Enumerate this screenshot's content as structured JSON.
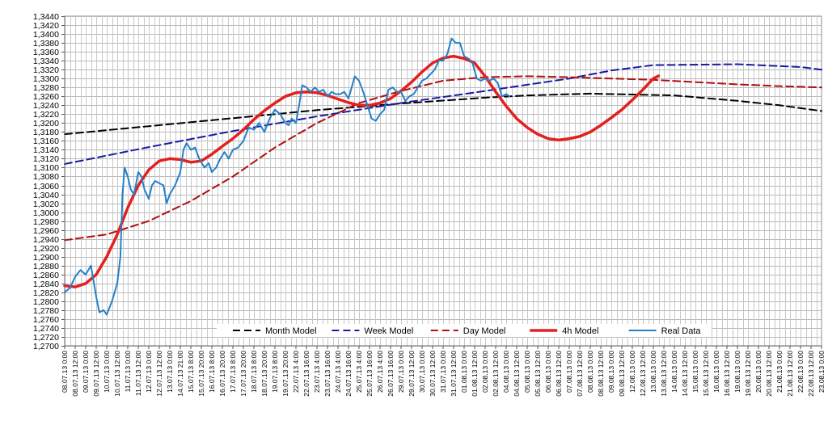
{
  "chart_data": {
    "type": "line",
    "title": "",
    "xlabel": "",
    "ylabel": "",
    "ylim": [
      1.27,
      1.344
    ],
    "y_step": 0.002,
    "grid": true,
    "legend_position": "bottom-center",
    "x_tick_labels": [
      "08.07.13 0:00",
      "08.07.13 12:00",
      "09.07.13 0:00",
      "09.07.13 12:00",
      "10.07.13 0:00",
      "10.07.13 12:00",
      "11.07.13 0:00",
      "11.07.13 12:00",
      "12.07.13 0:00",
      "12.07.13 12:00",
      "13.07.13 0:00",
      "14.07.13 21:00",
      "15.07.13 8:00",
      "15.07.13 20:00",
      "16.07.13 8:00",
      "16.07.13 20:00",
      "17.07.13 8:00",
      "17.07.13 20:00",
      "18.07.13 8:00",
      "18.07.13 20:00",
      "19.07.13 8:00",
      "19.07.13 20:00",
      "22.07.13 4:00",
      "22.07.13 16:00",
      "23.07.13 4:00",
      "23.07.13 16:00",
      "24.07.13 4:00",
      "24.07.13 16:00",
      "25.07.13 4:00",
      "25.07.13 16:00",
      "26.07.13 4:00",
      "26.07.13 16:00",
      "29.07.13 0:00",
      "29.07.13 12:00",
      "30.07.13 0:00",
      "30.07.13 12:00",
      "31.07.13 0:00",
      "31.07.13 12:00",
      "01.08.13 0:00",
      "01.08.13 12:00",
      "02.08.13 0:00",
      "02.08.13 12:00",
      "04.08.13 0:00",
      "04.08.13 12:00",
      "05.08.13 0:00",
      "05.08.13 12:00",
      "06.08.13 0:00",
      "06.08.13 12:00",
      "07.08.13 0:00",
      "07.08.13 12:00",
      "08.08.13 0:00",
      "08.08.13 12:00",
      "09.08.13 0:00",
      "09.08.13 12:00",
      "12.08.13 0:00",
      "12.08.13 12:00",
      "13.08.13 0:00",
      "13.08.13 12:00",
      "14.08.13 0:00",
      "14.08.13 12:00",
      "15.08.13 0:00",
      "15.08.13 12:00",
      "16.08.13 0:00",
      "16.08.13 12:00",
      "19.08.13 0:00",
      "19.08.13 12:00",
      "20.08.13 0:00",
      "20.08.13 12:00",
      "21.08.13 0:00",
      "21.08.13 12:00",
      "22.08.13 0:00",
      "22.08.13 12:00",
      "23.08.13 0:00"
    ],
    "series": [
      {
        "name": "Month Model",
        "color": "#000000",
        "style": "dashed",
        "width": 2,
        "points": [
          [
            0,
            1.3175
          ],
          [
            8,
            1.3193
          ],
          [
            16,
            1.3211
          ],
          [
            24,
            1.3229
          ],
          [
            32,
            1.3244
          ],
          [
            40,
            1.3257
          ],
          [
            44,
            1.3262
          ],
          [
            50,
            1.3266
          ],
          [
            58,
            1.3262
          ],
          [
            64,
            1.325
          ],
          [
            68,
            1.324
          ],
          [
            72,
            1.3227
          ]
        ]
      },
      {
        "name": "Week Model",
        "color": "#1a1aa0",
        "style": "dashed",
        "width": 2,
        "points": [
          [
            0,
            1.3108
          ],
          [
            8,
            1.3146
          ],
          [
            16,
            1.3182
          ],
          [
            24,
            1.3215
          ],
          [
            32,
            1.3245
          ],
          [
            40,
            1.3272
          ],
          [
            48,
            1.33
          ],
          [
            52,
            1.3318
          ],
          [
            56,
            1.333
          ],
          [
            64,
            1.3332
          ],
          [
            70,
            1.3326
          ],
          [
            72,
            1.332
          ]
        ]
      },
      {
        "name": "Day Model",
        "color": "#b01010",
        "style": "dashed",
        "width": 2,
        "points": [
          [
            0,
            1.2937
          ],
          [
            4,
            1.295
          ],
          [
            8,
            1.298
          ],
          [
            12,
            1.3025
          ],
          [
            16,
            1.308
          ],
          [
            20,
            1.3145
          ],
          [
            24,
            1.32
          ],
          [
            28,
            1.3245
          ],
          [
            32,
            1.3272
          ],
          [
            36,
            1.3295
          ],
          [
            40,
            1.3303
          ],
          [
            44,
            1.3305
          ],
          [
            48,
            1.3303
          ],
          [
            52,
            1.33
          ],
          [
            56,
            1.3297
          ],
          [
            60,
            1.3292
          ],
          [
            64,
            1.3287
          ],
          [
            68,
            1.3283
          ],
          [
            72,
            1.328
          ]
        ]
      },
      {
        "name": "4h Model",
        "color": "#e32020",
        "style": "solid",
        "width": 3.5,
        "points": [
          [
            0,
            1.2835
          ],
          [
            1,
            1.2832
          ],
          [
            2,
            1.284
          ],
          [
            3,
            1.286
          ],
          [
            4,
            1.29
          ],
          [
            5,
            1.295
          ],
          [
            6,
            1.301
          ],
          [
            7,
            1.306
          ],
          [
            8,
            1.3095
          ],
          [
            9,
            1.3115
          ],
          [
            10,
            1.312
          ],
          [
            11,
            1.3118
          ],
          [
            12,
            1.3112
          ],
          [
            13,
            1.3115
          ],
          [
            14,
            1.313
          ],
          [
            15,
            1.3148
          ],
          [
            16,
            1.3165
          ],
          [
            17,
            1.3185
          ],
          [
            18,
            1.3208
          ],
          [
            19,
            1.3228
          ],
          [
            20,
            1.3245
          ],
          [
            21,
            1.326
          ],
          [
            22,
            1.3268
          ],
          [
            23,
            1.327
          ],
          [
            24,
            1.3268
          ],
          [
            25,
            1.3262
          ],
          [
            26,
            1.3254
          ],
          [
            27,
            1.3246
          ],
          [
            28,
            1.324
          ],
          [
            29,
            1.324
          ],
          [
            30,
            1.3245
          ],
          [
            31,
            1.3255
          ],
          [
            32,
            1.3272
          ],
          [
            33,
            1.3292
          ],
          [
            34,
            1.3315
          ],
          [
            35,
            1.3335
          ],
          [
            36,
            1.3346
          ],
          [
            37,
            1.335
          ],
          [
            38,
            1.3345
          ],
          [
            39,
            1.3335
          ],
          [
            40,
            1.3305
          ],
          [
            41,
            1.327
          ],
          [
            42,
            1.3238
          ],
          [
            43,
            1.321
          ],
          [
            44,
            1.319
          ],
          [
            45,
            1.3175
          ],
          [
            46,
            1.3165
          ],
          [
            47,
            1.3162
          ],
          [
            48,
            1.3165
          ],
          [
            49,
            1.317
          ],
          [
            50,
            1.318
          ],
          [
            51,
            1.3195
          ],
          [
            52,
            1.3212
          ],
          [
            53,
            1.323
          ],
          [
            54,
            1.3252
          ],
          [
            55,
            1.3275
          ],
          [
            56,
            1.33
          ],
          [
            56.5,
            1.3306
          ]
        ]
      },
      {
        "name": "Real Data",
        "color": "#2480c8",
        "style": "solid",
        "width": 2,
        "points": [
          [
            0,
            1.282
          ],
          [
            0.5,
            1.283
          ],
          [
            1,
            1.2855
          ],
          [
            1.5,
            1.287
          ],
          [
            2,
            1.286
          ],
          [
            2.5,
            1.288
          ],
          [
            3,
            1.281
          ],
          [
            3.3,
            1.2775
          ],
          [
            3.7,
            1.278
          ],
          [
            4,
            1.277
          ],
          [
            4.5,
            1.28
          ],
          [
            5,
            1.284
          ],
          [
            5.3,
            1.29
          ],
          [
            5.5,
            1.304
          ],
          [
            5.7,
            1.31
          ],
          [
            6,
            1.308
          ],
          [
            6.3,
            1.305
          ],
          [
            6.6,
            1.304
          ],
          [
            7,
            1.309
          ],
          [
            7.3,
            1.308
          ],
          [
            7.6,
            1.305
          ],
          [
            8,
            1.303
          ],
          [
            8.3,
            1.306
          ],
          [
            8.6,
            1.307
          ],
          [
            9,
            1.3065
          ],
          [
            9.4,
            1.306
          ],
          [
            9.7,
            1.302
          ],
          [
            10,
            1.304
          ],
          [
            10.5,
            1.306
          ],
          [
            11,
            1.309
          ],
          [
            11.3,
            1.314
          ],
          [
            11.6,
            1.3155
          ],
          [
            12,
            1.314
          ],
          [
            12.4,
            1.3145
          ],
          [
            12.8,
            1.312
          ],
          [
            13.3,
            1.31
          ],
          [
            13.7,
            1.311
          ],
          [
            14,
            1.309
          ],
          [
            14.4,
            1.31
          ],
          [
            14.8,
            1.312
          ],
          [
            15.2,
            1.3135
          ],
          [
            15.6,
            1.312
          ],
          [
            16,
            1.314
          ],
          [
            16.5,
            1.3145
          ],
          [
            17,
            1.316
          ],
          [
            17.5,
            1.319
          ],
          [
            18,
            1.3185
          ],
          [
            18.5,
            1.32
          ],
          [
            19,
            1.318
          ],
          [
            19.5,
            1.321
          ],
          [
            20,
            1.323
          ],
          [
            20.5,
            1.322
          ],
          [
            21,
            1.32
          ],
          [
            21.3,
            1.3195
          ],
          [
            21.6,
            1.321
          ],
          [
            22,
            1.32
          ],
          [
            22.3,
            1.324
          ],
          [
            22.6,
            1.3285
          ],
          [
            23,
            1.328
          ],
          [
            23.4,
            1.327
          ],
          [
            23.8,
            1.328
          ],
          [
            24.2,
            1.327
          ],
          [
            24.6,
            1.3275
          ],
          [
            25,
            1.326
          ],
          [
            25.4,
            1.327
          ],
          [
            25.8,
            1.3265
          ],
          [
            26.2,
            1.3265
          ],
          [
            26.6,
            1.327
          ],
          [
            27,
            1.3255
          ],
          [
            27.3,
            1.328
          ],
          [
            27.6,
            1.3305
          ],
          [
            28,
            1.3295
          ],
          [
            28.4,
            1.327
          ],
          [
            28.8,
            1.324
          ],
          [
            29.2,
            1.321
          ],
          [
            29.6,
            1.3205
          ],
          [
            30,
            1.322
          ],
          [
            30.4,
            1.323
          ],
          [
            30.8,
            1.3275
          ],
          [
            31.2,
            1.328
          ],
          [
            31.6,
            1.327
          ],
          [
            32,
            1.327
          ],
          [
            32.4,
            1.325
          ],
          [
            32.8,
            1.326
          ],
          [
            33.2,
            1.3265
          ],
          [
            33.6,
            1.328
          ],
          [
            34,
            1.3295
          ],
          [
            34.4,
            1.33
          ],
          [
            34.8,
            1.331
          ],
          [
            35.2,
            1.332
          ],
          [
            35.6,
            1.334
          ],
          [
            36,
            1.334
          ],
          [
            36.4,
            1.3355
          ],
          [
            36.8,
            1.339
          ],
          [
            37.2,
            1.338
          ],
          [
            37.6,
            1.338
          ],
          [
            38,
            1.335
          ],
          [
            38.4,
            1.3345
          ],
          [
            38.8,
            1.3335
          ],
          [
            39.2,
            1.33
          ],
          [
            39.6,
            1.3295
          ],
          [
            40,
            1.33
          ],
          [
            40.4,
            1.3295
          ],
          [
            40.8,
            1.33
          ],
          [
            41.2,
            1.329
          ],
          [
            41.6,
            1.326
          ],
          [
            42,
            1.3265
          ],
          [
            42.3,
            1.326
          ]
        ]
      }
    ]
  }
}
